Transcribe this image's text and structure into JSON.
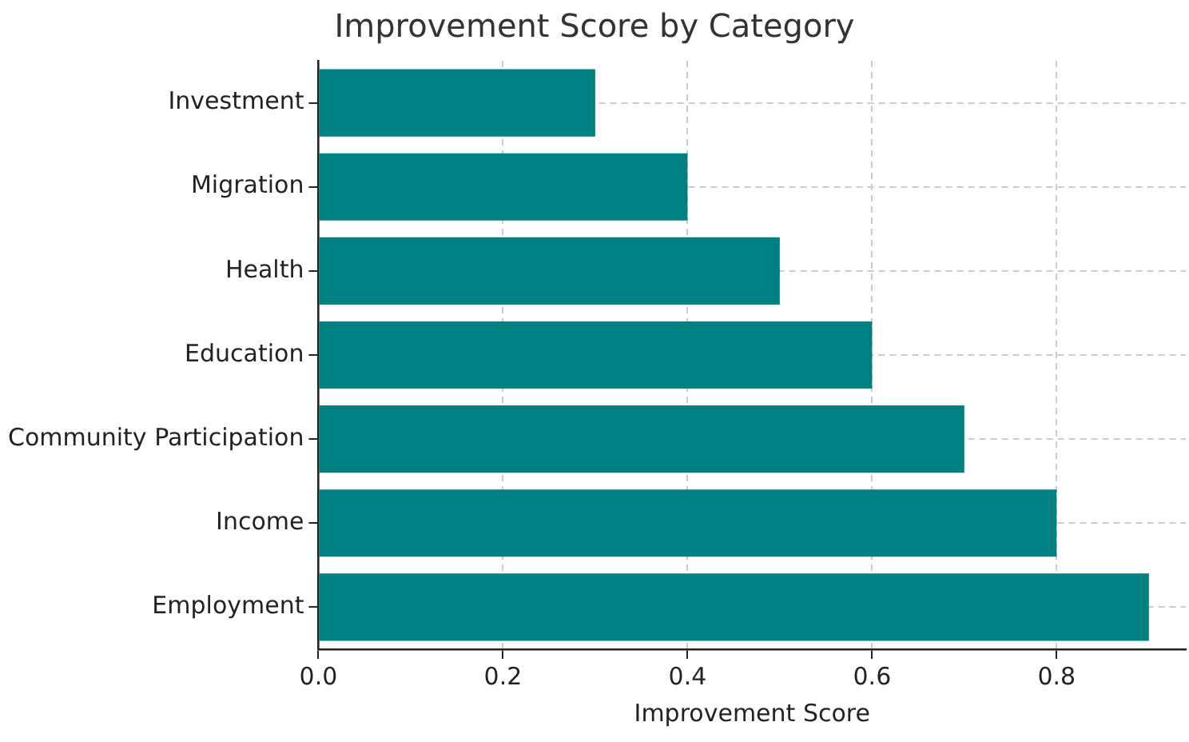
{
  "chart_data": {
    "type": "bar",
    "orientation": "horizontal",
    "title": "Improvement Score by Category",
    "xlabel": "Improvement Score",
    "categories": [
      "Investment",
      "Migration",
      "Health",
      "Education",
      "Community Participation",
      "Income",
      "Employment"
    ],
    "values": [
      0.3,
      0.4,
      0.5,
      0.6,
      0.7,
      0.8,
      0.9
    ],
    "color": "#008080",
    "xlim": [
      0,
      0.94
    ],
    "xticks": [
      {
        "value": 0,
        "label": "0.0"
      },
      {
        "value": 0.2,
        "label": "0.2"
      },
      {
        "value": 0.4,
        "label": "0.4"
      },
      {
        "value": 0.6,
        "label": "0.6"
      },
      {
        "value": 0.8,
        "label": "0.8"
      }
    ],
    "grid": true,
    "legend": false
  }
}
